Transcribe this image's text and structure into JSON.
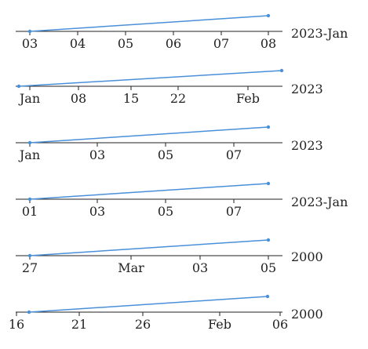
{
  "colors": {
    "line": "#4a90d9",
    "axis": "#222222",
    "background": "#ffffff"
  },
  "chart_data": [
    {
      "type": "line",
      "x": [
        "2023-01-03",
        "2023-01-08"
      ],
      "y": [
        0,
        1
      ],
      "xlim": [
        "2023-01-03",
        "2023-01-08"
      ],
      "tick_labels": [
        "03",
        "04",
        "05",
        "06",
        "07",
        "08"
      ],
      "offset_label": "2023-Jan",
      "grid": false
    },
    {
      "type": "line",
      "x": [
        "2022-12-31",
        "2023-02-08"
      ],
      "y": [
        0,
        1
      ],
      "xlim": [
        "2022-12-31",
        "2023-02-08"
      ],
      "tick_labels": [
        "Jan",
        "08",
        "15",
        "22",
        "Feb"
      ],
      "offset_label": "2023",
      "grid": false
    },
    {
      "type": "line",
      "x": [
        "2023-01-01",
        "2023-08-01"
      ],
      "y": [
        0,
        1
      ],
      "xlim": [
        "2023-01-01",
        "2023-08-01"
      ],
      "tick_labels": [
        "Jan",
        "03",
        "05",
        "07"
      ],
      "offset_label": "2023",
      "grid": false
    },
    {
      "type": "line",
      "x": [
        "2023-01-01",
        "2023-08-01"
      ],
      "y": [
        0,
        1
      ],
      "xlim": [
        "2023-01-01",
        "2023-08-01"
      ],
      "tick_labels": [
        "01",
        "03",
        "05",
        "07"
      ],
      "offset_label": "2023-Jan",
      "grid": false
    },
    {
      "type": "line",
      "x": [
        "2000-02-27",
        "2000-03-05"
      ],
      "y": [
        0,
        1
      ],
      "xlim": [
        "2000-02-27",
        "2000-03-05"
      ],
      "tick_labels": [
        "27",
        "Mar",
        "03",
        "05"
      ],
      "offset_label": "2000",
      "grid": false
    },
    {
      "type": "line",
      "x": [
        "2000-01-17",
        "2000-02-05"
      ],
      "y": [
        0,
        1
      ],
      "xlim": [
        "2000-01-16",
        "2000-02-06"
      ],
      "tick_labels": [
        "16",
        "21",
        "26",
        "Feb",
        "06"
      ],
      "offset_label": "2000",
      "grid": false
    }
  ]
}
